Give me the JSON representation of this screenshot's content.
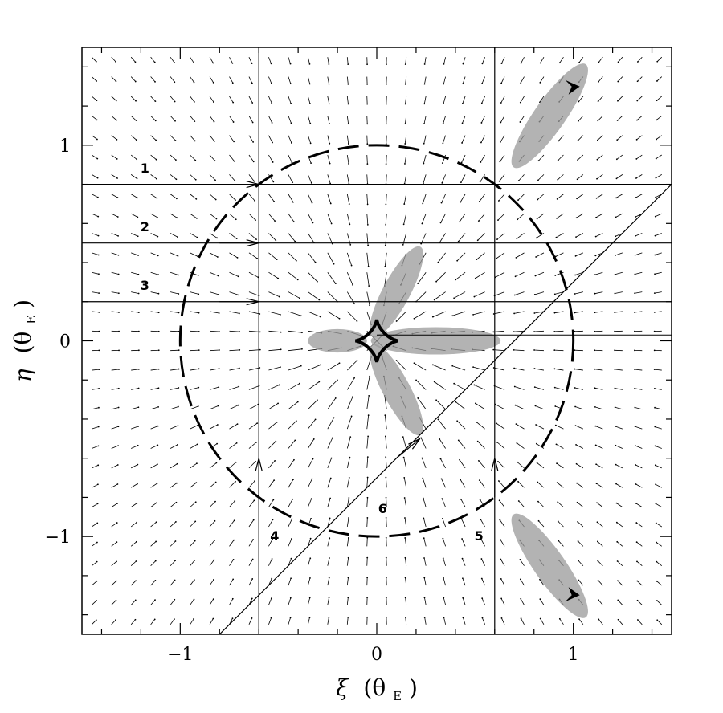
{
  "colors": {
    "ink": "#000000",
    "caustic_shade": "#9a9a9a",
    "background": "#ffffff"
  },
  "chart_data": {
    "type": "vector-field",
    "title": "",
    "xlabel": "ξ",
    "xlabel_unit": "(θ",
    "xlabel_sub": "E",
    "xlabel_close": ")",
    "ylabel": "η",
    "ylabel_unit": "(θ",
    "ylabel_sub": "E",
    "ylabel_close": ")",
    "xlim": [
      -1.5,
      1.5
    ],
    "ylim": [
      -1.5,
      1.5
    ],
    "xticks": [
      -1,
      0,
      1
    ],
    "yticks": [
      -1,
      0,
      1
    ],
    "xtick_labels": [
      "−1",
      "0",
      "1"
    ],
    "ytick_labels": [
      "−1",
      "0",
      "1"
    ],
    "einstein_ring_radius": 1.0,
    "caustic_center": [
      0,
      0
    ],
    "outer_cusps": [
      [
        1.0,
        1.3
      ],
      [
        1.0,
        -1.3
      ]
    ],
    "grid_step": 0.1,
    "trajectories": [
      {
        "label": "1",
        "type": "horizontal",
        "y": 0.8,
        "label_pos": [
          -1.18,
          0.86
        ]
      },
      {
        "label": "2",
        "type": "horizontal",
        "y": 0.5,
        "label_pos": [
          -1.18,
          0.56
        ]
      },
      {
        "label": "3",
        "type": "horizontal",
        "y": 0.2,
        "label_pos": [
          -1.18,
          0.26
        ]
      },
      {
        "label": "4",
        "type": "vertical",
        "x": -0.6,
        "label_pos": [
          -0.52,
          -1.02
        ]
      },
      {
        "label": "5",
        "type": "vertical",
        "x": 0.6,
        "label_pos": [
          0.52,
          -1.02
        ]
      },
      {
        "label": "6",
        "type": "diagonal",
        "from": [
          -0.8,
          -1.5
        ],
        "to": [
          1.5,
          0.8
        ],
        "label_pos": [
          0.03,
          -0.88
        ]
      }
    ],
    "arrows": [
      {
        "from": [
          -0.8,
          0.8
        ],
        "to": [
          -0.6,
          0.8
        ]
      },
      {
        "from": [
          -0.8,
          0.5
        ],
        "to": [
          -0.6,
          0.5
        ]
      },
      {
        "from": [
          -0.8,
          0.2
        ],
        "to": [
          -0.6,
          0.2
        ]
      },
      {
        "from": [
          -0.6,
          -0.8
        ],
        "to": [
          -0.6,
          -0.6
        ]
      },
      {
        "from": [
          0.6,
          -0.8
        ],
        "to": [
          0.6,
          -0.6
        ]
      },
      {
        "from": [
          0.1,
          -0.6
        ],
        "to": [
          0.22,
          -0.5
        ]
      }
    ]
  }
}
